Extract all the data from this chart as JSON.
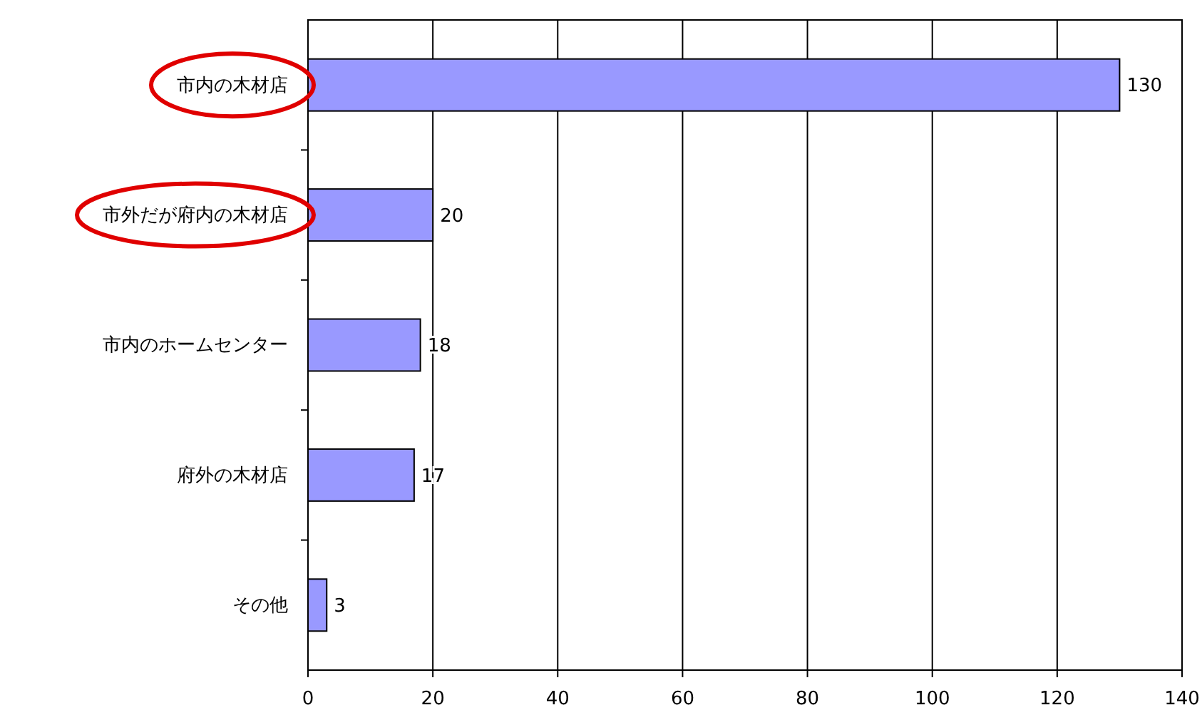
{
  "chart_data": {
    "type": "bar",
    "orientation": "horizontal",
    "categories": [
      "市内の木材店",
      "市外だが府内の木材店",
      "市内のホームセンター",
      "府外の木材店",
      "その他"
    ],
    "values": [
      130,
      20,
      18,
      17,
      3
    ],
    "color": "#9999ff",
    "xlim": [
      0,
      140
    ],
    "xticks": [
      0,
      20,
      40,
      60,
      80,
      100,
      120,
      140
    ],
    "grid": "x",
    "data_labels": true
  }
}
